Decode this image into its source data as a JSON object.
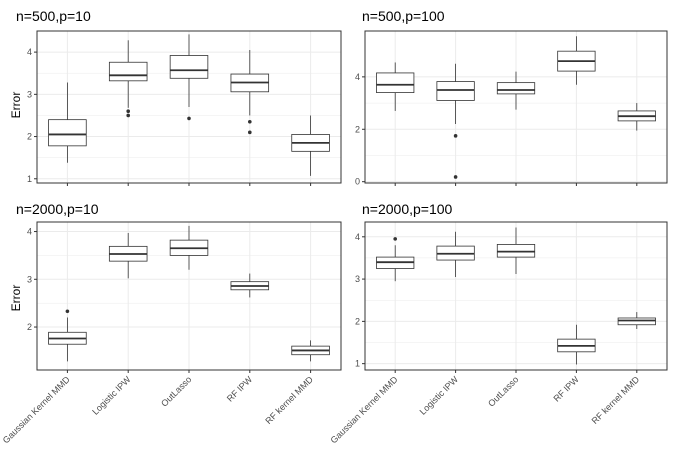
{
  "chart_data": {
    "type": "box",
    "ylabel": "Error",
    "categories": [
      "Gaussian Kernel MMD",
      "Logistic IPW",
      "OutLasso",
      "RF IPW",
      "RF kernel MMD"
    ],
    "colors": {
      "panel_bg": "#ffffff",
      "grid": "#ebebeb",
      "border": "#333333",
      "box": "#333333"
    },
    "panels": [
      {
        "title": "n=500,p=10",
        "ylim": [
          0.9,
          4.5
        ],
        "yticks": [
          1,
          2,
          3,
          4
        ],
        "boxes": [
          {
            "q1": 1.78,
            "median": 2.05,
            "q3": 2.4,
            "whisker_low": 1.38,
            "whisker_high": 3.28,
            "outliers": []
          },
          {
            "q1": 3.32,
            "median": 3.45,
            "q3": 3.76,
            "whisker_low": 2.68,
            "whisker_high": 4.28,
            "outliers": [
              2.6,
              2.5
            ]
          },
          {
            "q1": 3.38,
            "median": 3.57,
            "q3": 3.92,
            "whisker_low": 2.7,
            "whisker_high": 4.42,
            "outliers": [
              2.43
            ]
          },
          {
            "q1": 3.06,
            "median": 3.28,
            "q3": 3.48,
            "whisker_low": 2.5,
            "whisker_high": 4.05,
            "outliers": [
              2.35,
              2.1
            ]
          },
          {
            "q1": 1.65,
            "median": 1.85,
            "q3": 2.05,
            "whisker_low": 1.07,
            "whisker_high": 2.5,
            "outliers": []
          }
        ]
      },
      {
        "title": "n=500,p=100",
        "ylim": [
          -0.05,
          5.75
        ],
        "yticks": [
          0,
          2,
          4
        ],
        "boxes": [
          {
            "q1": 3.4,
            "median": 3.7,
            "q3": 4.15,
            "whisker_low": 2.7,
            "whisker_high": 4.55,
            "outliers": []
          },
          {
            "q1": 3.1,
            "median": 3.5,
            "q3": 3.82,
            "whisker_low": 2.2,
            "whisker_high": 4.5,
            "outliers": [
              1.75,
              0.18
            ]
          },
          {
            "q1": 3.35,
            "median": 3.5,
            "q3": 3.78,
            "whisker_low": 2.75,
            "whisker_high": 4.2,
            "outliers": []
          },
          {
            "q1": 4.22,
            "median": 4.6,
            "q3": 4.98,
            "whisker_low": 3.7,
            "whisker_high": 5.55,
            "outliers": []
          },
          {
            "q1": 2.32,
            "median": 2.5,
            "q3": 2.7,
            "whisker_low": 1.95,
            "whisker_high": 3.0,
            "outliers": []
          }
        ]
      },
      {
        "title": "n=2000,p=10",
        "ylim": [
          1.1,
          4.2
        ],
        "yticks": [
          2,
          3,
          4
        ],
        "boxes": [
          {
            "q1": 1.64,
            "median": 1.76,
            "q3": 1.89,
            "whisker_low": 1.28,
            "whisker_high": 2.2,
            "outliers": [
              2.33
            ]
          },
          {
            "q1": 3.38,
            "median": 3.53,
            "q3": 3.69,
            "whisker_low": 3.02,
            "whisker_high": 3.97,
            "outliers": []
          },
          {
            "q1": 3.5,
            "median": 3.65,
            "q3": 3.82,
            "whisker_low": 3.2,
            "whisker_high": 4.12,
            "outliers": []
          },
          {
            "q1": 2.78,
            "median": 2.86,
            "q3": 2.95,
            "whisker_low": 2.62,
            "whisker_high": 3.12,
            "outliers": []
          },
          {
            "q1": 1.42,
            "median": 1.51,
            "q3": 1.6,
            "whisker_low": 1.28,
            "whisker_high": 1.72,
            "outliers": []
          }
        ]
      },
      {
        "title": "n=2000,p=100",
        "ylim": [
          0.85,
          4.35
        ],
        "yticks": [
          1,
          2,
          3,
          4
        ],
        "boxes": [
          {
            "q1": 3.25,
            "median": 3.4,
            "q3": 3.52,
            "whisker_low": 2.95,
            "whisker_high": 3.8,
            "outliers": [
              3.95
            ]
          },
          {
            "q1": 3.45,
            "median": 3.6,
            "q3": 3.78,
            "whisker_low": 3.05,
            "whisker_high": 4.12,
            "outliers": []
          },
          {
            "q1": 3.52,
            "median": 3.65,
            "q3": 3.82,
            "whisker_low": 3.12,
            "whisker_high": 4.22,
            "outliers": []
          },
          {
            "q1": 1.28,
            "median": 1.42,
            "q3": 1.58,
            "whisker_low": 0.98,
            "whisker_high": 1.92,
            "outliers": []
          },
          {
            "q1": 1.92,
            "median": 2.02,
            "q3": 2.08,
            "whisker_low": 1.82,
            "whisker_high": 2.22,
            "outliers": []
          }
        ]
      }
    ]
  }
}
